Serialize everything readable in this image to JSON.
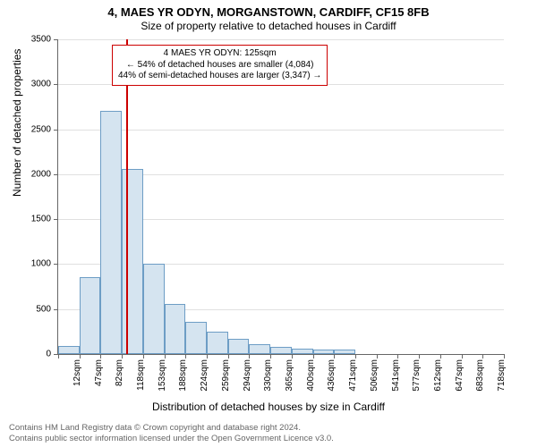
{
  "title_main": "4, MAES YR ODYN, MORGANSTOWN, CARDIFF, CF15 8FB",
  "title_sub": "Size of property relative to detached houses in Cardiff",
  "y_axis_title": "Number of detached properties",
  "x_axis_title": "Distribution of detached houses by size in Cardiff",
  "chart": {
    "type": "histogram",
    "ylim_max": 3500,
    "ytick_step": 500,
    "bar_fill": "#d5e4f0",
    "bar_border": "#6d9dc5",
    "grid_color": "#e0e0e0",
    "background_color": "#ffffff",
    "reference_line": {
      "color": "#cc0000",
      "bin_index": 3,
      "fraction_in_bin": 0.2
    },
    "x_labels": [
      "12sqm",
      "47sqm",
      "82sqm",
      "118sqm",
      "153sqm",
      "188sqm",
      "224sqm",
      "259sqm",
      "294sqm",
      "330sqm",
      "365sqm",
      "400sqm",
      "436sqm",
      "471sqm",
      "506sqm",
      "541sqm",
      "577sqm",
      "612sqm",
      "647sqm",
      "683sqm",
      "718sqm"
    ],
    "values": [
      90,
      860,
      2700,
      2060,
      1000,
      560,
      360,
      250,
      170,
      110,
      80,
      60,
      50,
      45,
      0,
      0,
      0,
      0,
      0,
      0,
      0
    ]
  },
  "annotation": {
    "line1": "4 MAES YR ODYN: 125sqm",
    "line2": "← 54% of detached houses are smaller (4,084)",
    "line3": "44% of semi-detached houses are larger (3,347) →"
  },
  "footer": {
    "line1": "Contains HM Land Registry data © Crown copyright and database right 2024.",
    "line2": "Contains public sector information licensed under the Open Government Licence v3.0."
  }
}
